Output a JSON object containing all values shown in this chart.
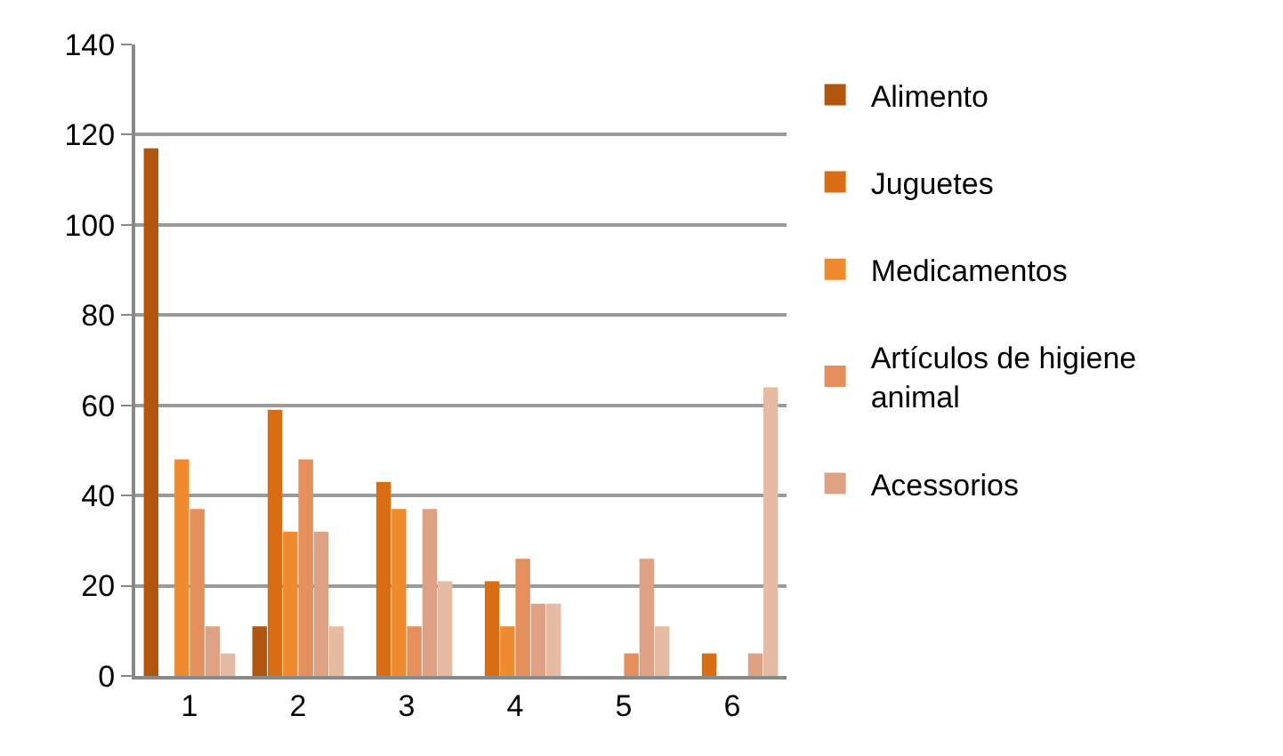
{
  "chart_data": {
    "type": "bar",
    "categories": [
      "1",
      "2",
      "3",
      "4",
      "5",
      "6"
    ],
    "series": [
      {
        "name": "Alimento",
        "color": "#b0560f",
        "values": [
          117,
          11,
          null,
          null,
          null,
          null
        ]
      },
      {
        "name": "Juguetes",
        "color": "#d96d14",
        "values": [
          null,
          59,
          43,
          21,
          null,
          5
        ]
      },
      {
        "name": "Medicamentos",
        "color": "#ef8a2e",
        "values": [
          48,
          32,
          37,
          11,
          null,
          null
        ]
      },
      {
        "name": "Artículos de higiene animal",
        "color": "#e58f5c",
        "values": [
          37,
          48,
          11,
          26,
          5,
          null
        ]
      },
      {
        "name": "Acessorios",
        "color": "#dea184",
        "values": [
          11,
          32,
          37,
          16,
          26,
          5
        ]
      },
      {
        "color": "#e6bba4",
        "values": [
          5,
          11,
          21,
          16,
          11,
          64
        ]
      }
    ],
    "ylim": [
      0,
      140
    ],
    "yticks": [
      0,
      20,
      40,
      60,
      80,
      100,
      120,
      140
    ],
    "grid": "y",
    "legend": "right"
  }
}
